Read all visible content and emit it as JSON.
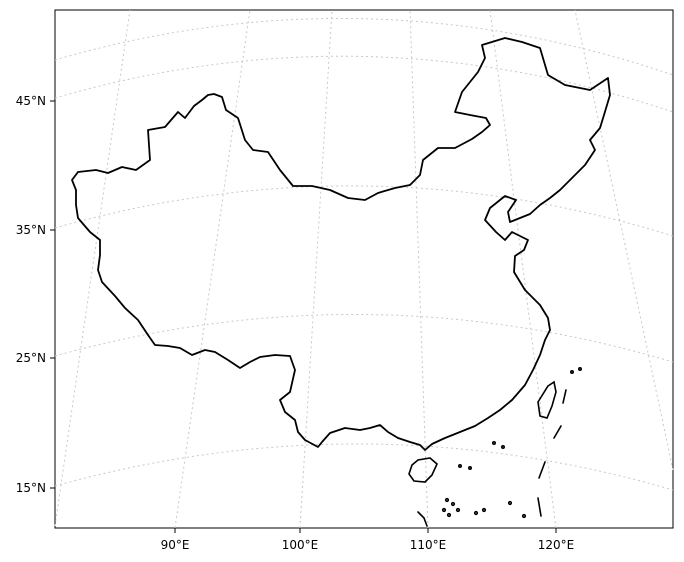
{
  "map": {
    "projection": "conic",
    "graticule_style": "dotted",
    "colors": {
      "frame": "#000000",
      "coastline": "#000000",
      "graticule": "#c8c8c8",
      "background": "#ffffff"
    },
    "lat_labels": [
      "45°N",
      "35°N",
      "25°N",
      "15°N"
    ],
    "lon_labels": [
      "90°E",
      "100°E",
      "110°E",
      "120°E"
    ]
  }
}
